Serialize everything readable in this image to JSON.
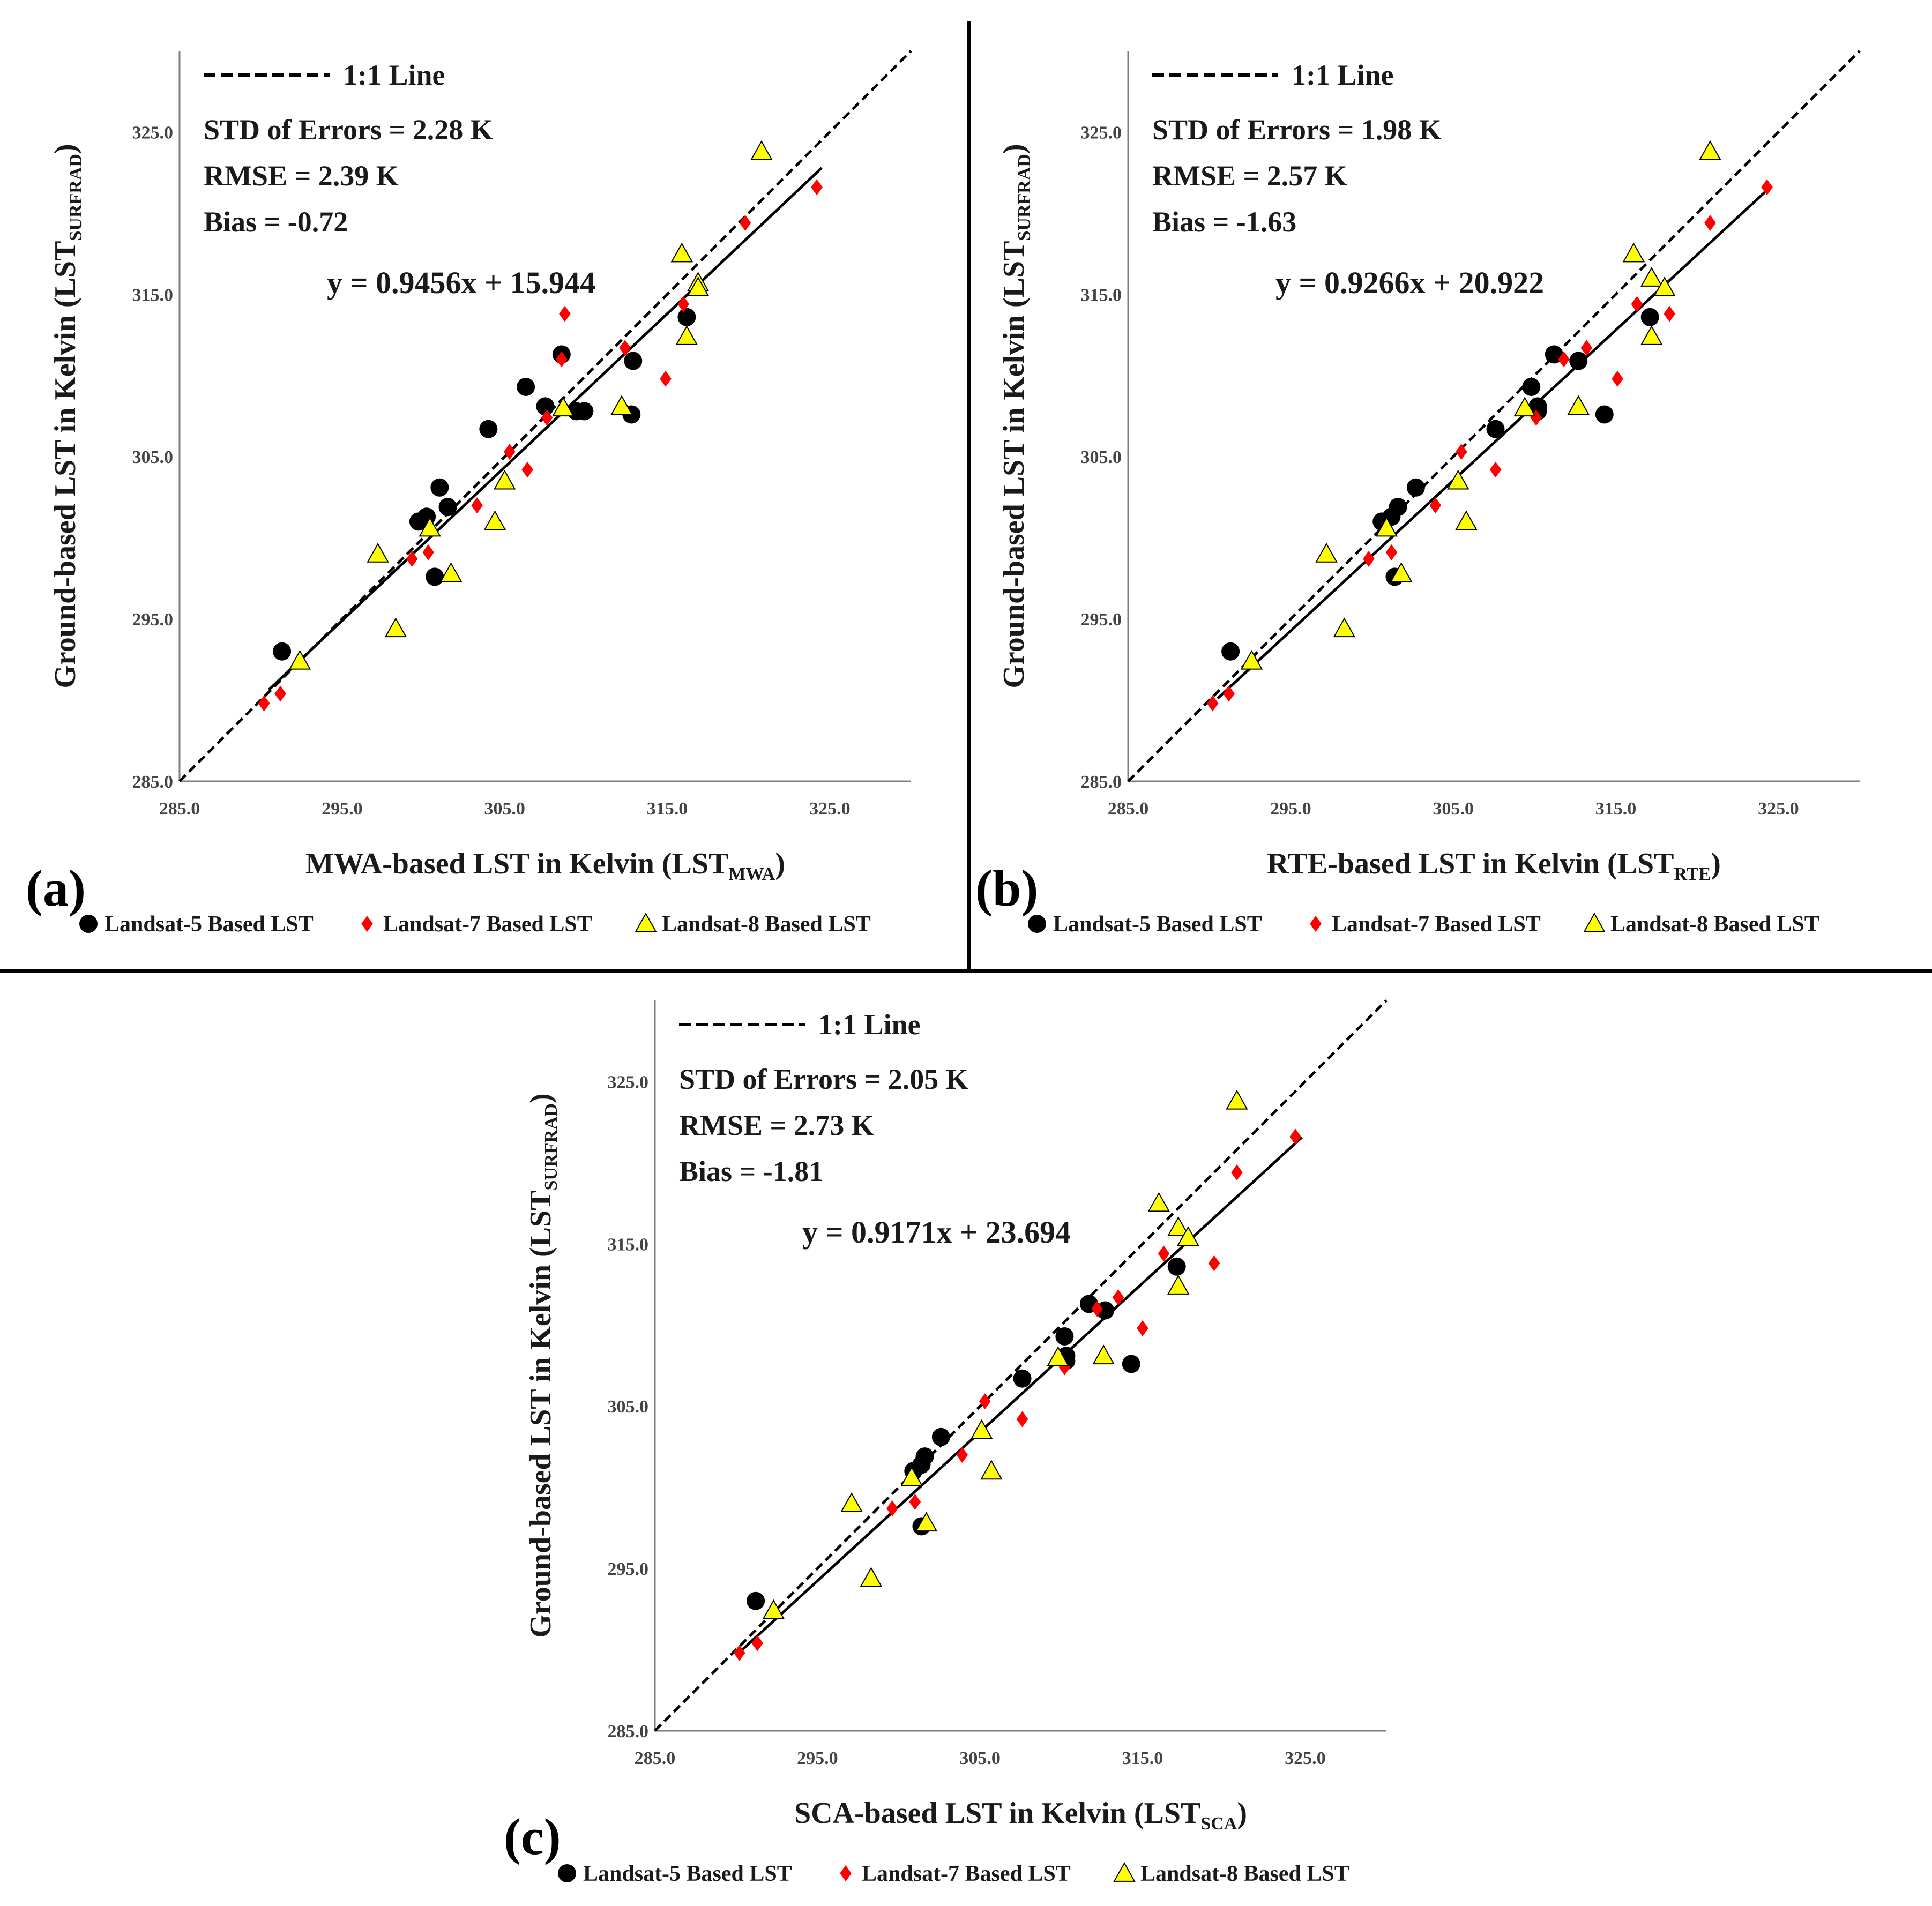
{
  "colors": {
    "landsat5": "#000000",
    "landsat7": "#ff0000",
    "landsat8": "#ffff00",
    "landsat8_edge": "#000000",
    "axis": "#7f7f7f",
    "line": "#000000",
    "separator": "#000000"
  },
  "chart_data": [
    {
      "type": "scatter",
      "panel": "(a)",
      "xlabel_main": "MWA-based LST in Kelvin (LST",
      "xlabel_sub": "MWA",
      "xlabel_end": ")",
      "ylabel_main": "Ground-based LST in Kelvin (LST",
      "ylabel_sub": "SURFRAD",
      "ylabel_end": ")",
      "xlim": [
        285,
        330
      ],
      "ylim": [
        285,
        330
      ],
      "ticks": [
        285,
        295,
        305,
        315,
        325
      ],
      "tick_labels": [
        "285.0",
        "295.0",
        "305.0",
        "315.0",
        "325.0"
      ],
      "identity_label": "1:1 Line",
      "stats": [
        "STD of Errors = 2.28 K",
        "RMSE = 2.39 K",
        "Bias = -0.72"
      ],
      "equation": "y = 0.9456x + 15.944",
      "fit": {
        "slope": 0.9456,
        "intercept": 15.944,
        "x_range": [
          290.5,
          324.5
        ]
      },
      "series": [
        {
          "name": "Landsat-5 Based LST",
          "marker": "circle",
          "points": [
            [
              291.3,
              293.0
            ],
            [
              299.7,
              301.0
            ],
            [
              300.2,
              301.3
            ],
            [
              300.7,
              297.6
            ],
            [
              301.0,
              303.1
            ],
            [
              301.5,
              301.9
            ],
            [
              304.0,
              306.7
            ],
            [
              306.3,
              309.3
            ],
            [
              307.5,
              308.1
            ],
            [
              308.5,
              311.3
            ],
            [
              309.4,
              307.8
            ],
            [
              309.9,
              307.8
            ],
            [
              312.8,
              307.6
            ],
            [
              312.9,
              310.9
            ],
            [
              316.2,
              313.6
            ]
          ]
        },
        {
          "name": "Landsat-7 Based LST",
          "marker": "diamond",
          "points": [
            [
              290.2,
              289.8
            ],
            [
              291.2,
              290.4
            ],
            [
              299.3,
              298.7
            ],
            [
              300.3,
              299.1
            ],
            [
              303.3,
              302.0
            ],
            [
              305.3,
              305.3
            ],
            [
              306.4,
              304.2
            ],
            [
              307.6,
              307.4
            ],
            [
              308.5,
              311.0
            ],
            [
              308.7,
              313.8
            ],
            [
              312.4,
              311.7
            ],
            [
              314.9,
              309.8
            ],
            [
              316.0,
              314.4
            ],
            [
              319.8,
              319.4
            ],
            [
              324.2,
              321.6
            ]
          ]
        },
        {
          "name": "Landsat-8 Based LST",
          "marker": "triangle",
          "points": [
            [
              292.4,
              292.4
            ],
            [
              297.2,
              299.0
            ],
            [
              298.3,
              294.4
            ],
            [
              300.4,
              300.6
            ],
            [
              301.7,
              297.8
            ],
            [
              304.4,
              301.0
            ],
            [
              305.0,
              303.5
            ],
            [
              308.6,
              308.0
            ],
            [
              312.2,
              308.1
            ],
            [
              315.9,
              317.5
            ],
            [
              316.2,
              312.4
            ],
            [
              316.9,
              315.7
            ],
            [
              316.9,
              315.4
            ],
            [
              320.8,
              323.8
            ]
          ]
        }
      ]
    },
    {
      "type": "scatter",
      "panel": "(b)",
      "xlabel_main": "RTE-based LST in Kelvin (LST",
      "xlabel_sub": "RTE",
      "xlabel_end": ")",
      "ylabel_main": "Ground-based LST in Kelvin (LST",
      "ylabel_sub": "SURFRAD",
      "ylabel_end": ")",
      "xlim": [
        285,
        330
      ],
      "ylim": [
        285,
        330
      ],
      "ticks": [
        285,
        295,
        305,
        315,
        325
      ],
      "tick_labels": [
        "285.0",
        "295.0",
        "305.0",
        "315.0",
        "325.0"
      ],
      "identity_label": "1:1 Line",
      "stats": [
        "STD of Errors = 1.98 K",
        "RMSE = 2.57 K",
        "Bias = -1.63"
      ],
      "equation": "y = 0.9266x + 20.922",
      "fit": {
        "slope": 0.9266,
        "intercept": 20.922,
        "x_range": [
          290.5,
          324.5
        ]
      },
      "series": [
        {
          "name": "Landsat-5 Based LST",
          "marker": "circle",
          "points": [
            [
              291.3,
              293.0
            ],
            [
              300.6,
              301.0
            ],
            [
              301.2,
              301.3
            ],
            [
              301.6,
              301.9
            ],
            [
              301.4,
              297.6
            ],
            [
              302.7,
              303.1
            ],
            [
              307.6,
              306.7
            ],
            [
              309.8,
              309.3
            ],
            [
              310.2,
              308.1
            ],
            [
              310.2,
              307.8
            ],
            [
              311.2,
              311.3
            ],
            [
              312.7,
              310.9
            ],
            [
              314.3,
              307.6
            ],
            [
              317.1,
              313.6
            ]
          ]
        },
        {
          "name": "Landsat-7 Based LST",
          "marker": "diamond",
          "points": [
            [
              290.2,
              289.8
            ],
            [
              291.2,
              290.4
            ],
            [
              299.8,
              298.7
            ],
            [
              301.2,
              299.1
            ],
            [
              303.9,
              302.0
            ],
            [
              305.5,
              305.3
            ],
            [
              307.6,
              304.2
            ],
            [
              310.1,
              307.4
            ],
            [
              311.8,
              311.0
            ],
            [
              313.2,
              311.7
            ],
            [
              315.1,
              309.8
            ],
            [
              316.3,
              314.4
            ],
            [
              318.3,
              313.8
            ],
            [
              320.8,
              319.4
            ],
            [
              324.3,
              321.6
            ]
          ]
        },
        {
          "name": "Landsat-8 Based LST",
          "marker": "triangle",
          "points": [
            [
              292.6,
              292.4
            ],
            [
              297.2,
              299.0
            ],
            [
              298.3,
              294.4
            ],
            [
              300.9,
              300.6
            ],
            [
              301.8,
              297.8
            ],
            [
              305.8,
              301.0
            ],
            [
              305.3,
              303.5
            ],
            [
              309.4,
              308.0
            ],
            [
              312.7,
              308.1
            ],
            [
              316.1,
              317.5
            ],
            [
              317.2,
              312.4
            ],
            [
              317.2,
              316.0
            ],
            [
              318.0,
              315.4
            ],
            [
              320.8,
              323.8
            ]
          ]
        }
      ]
    },
    {
      "type": "scatter",
      "panel": "(c)",
      "xlabel_main": "SCA-based LST in Kelvin (LST",
      "xlabel_sub": "SCA",
      "xlabel_end": ")",
      "ylabel_main": "Ground-based LST in Kelvin (LST",
      "ylabel_sub": "SURFRAD",
      "ylabel_end": ")",
      "xlim": [
        285,
        330
      ],
      "ylim": [
        285,
        330
      ],
      "ticks": [
        285,
        295,
        305,
        315,
        325
      ],
      "tick_labels": [
        "285.0",
        "295.0",
        "305.0",
        "315.0",
        "325.0"
      ],
      "identity_label": "1:1 Line",
      "stats": [
        "STD of Errors = 2.05 K",
        "RMSE = 2.73 K",
        "Bias = -1.81"
      ],
      "equation": "y = 0.9171x + 23.694",
      "fit": {
        "slope": 0.9171,
        "intercept": 23.694,
        "x_range": [
          290.3,
          324.8
        ]
      },
      "series": [
        {
          "name": "Landsat-5 Based LST",
          "marker": "circle",
          "points": [
            [
              291.2,
              293.0
            ],
            [
              300.9,
              301.0
            ],
            [
              301.4,
              301.4
            ],
            [
              301.6,
              301.9
            ],
            [
              301.4,
              297.6
            ],
            [
              302.6,
              303.1
            ],
            [
              307.6,
              306.7
            ],
            [
              310.2,
              309.3
            ],
            [
              310.3,
              308.1
            ],
            [
              310.3,
              307.8
            ],
            [
              311.7,
              311.3
            ],
            [
              312.7,
              310.9
            ],
            [
              314.3,
              307.6
            ],
            [
              317.1,
              313.6
            ]
          ]
        },
        {
          "name": "Landsat-7 Based LST",
          "marker": "diamond",
          "points": [
            [
              290.2,
              289.8
            ],
            [
              291.3,
              290.4
            ],
            [
              299.6,
              298.7
            ],
            [
              301.0,
              299.1
            ],
            [
              303.9,
              302.0
            ],
            [
              305.3,
              305.3
            ],
            [
              307.6,
              304.2
            ],
            [
              310.2,
              307.4
            ],
            [
              312.2,
              311.0
            ],
            [
              313.5,
              311.7
            ],
            [
              315.0,
              309.8
            ],
            [
              316.3,
              314.4
            ],
            [
              319.4,
              313.8
            ],
            [
              320.8,
              319.4
            ],
            [
              324.4,
              321.6
            ]
          ]
        },
        {
          "name": "Landsat-8 Based LST",
          "marker": "triangle",
          "points": [
            [
              292.3,
              292.4
            ],
            [
              297.1,
              299.0
            ],
            [
              298.3,
              294.4
            ],
            [
              300.8,
              300.6
            ],
            [
              301.7,
              297.8
            ],
            [
              305.7,
              301.0
            ],
            [
              305.1,
              303.5
            ],
            [
              309.8,
              308.0
            ],
            [
              312.6,
              308.1
            ],
            [
              316.0,
              317.5
            ],
            [
              317.2,
              312.4
            ],
            [
              317.2,
              316.0
            ],
            [
              317.8,
              315.4
            ],
            [
              320.8,
              323.8
            ]
          ]
        }
      ]
    }
  ]
}
